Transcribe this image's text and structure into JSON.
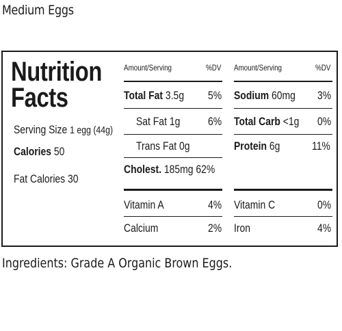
{
  "product_name": "Medium Eggs",
  "panel": {
    "title_line1": "Nutrition",
    "title_line2": "Facts",
    "serving_size_label": "Serving Size",
    "serving_size_value": "1 egg (44g)",
    "calories_label": "Calories",
    "calories_value": "50",
    "fat_calories_label": "Fat Calories",
    "fat_calories_value": "30",
    "header_amount": "Amount/Serving",
    "header_dv": "%DV",
    "total_fat": {
      "label": "Total Fat",
      "amount": "3.5g",
      "dv": "5%"
    },
    "sat_fat": {
      "label": "Sat Fat",
      "amount": "1g",
      "dv": "6%"
    },
    "trans_fat": {
      "label": "Trans Fat",
      "amount": "0g"
    },
    "cholest": {
      "label": "Cholest.",
      "amount": "185mg",
      "dv": "62%"
    },
    "sodium": {
      "label": "Sodium",
      "amount": "60mg",
      "dv": "3%"
    },
    "total_carb": {
      "label": "Total Carb",
      "amount": "<1g",
      "dv": "0%"
    },
    "protein": {
      "label": "Protein",
      "amount": "6g",
      "dv": "11%"
    },
    "vitamin_a": {
      "label": "Vitamin A",
      "dv": "4%"
    },
    "calcium": {
      "label": "Calcium",
      "dv": "2%"
    },
    "vitamin_c": {
      "label": "Vitamin C",
      "dv": "0%"
    },
    "iron": {
      "label": "Iron",
      "dv": "4%"
    }
  },
  "ingredients": "Ingredients: Grade A Organic Brown Eggs."
}
